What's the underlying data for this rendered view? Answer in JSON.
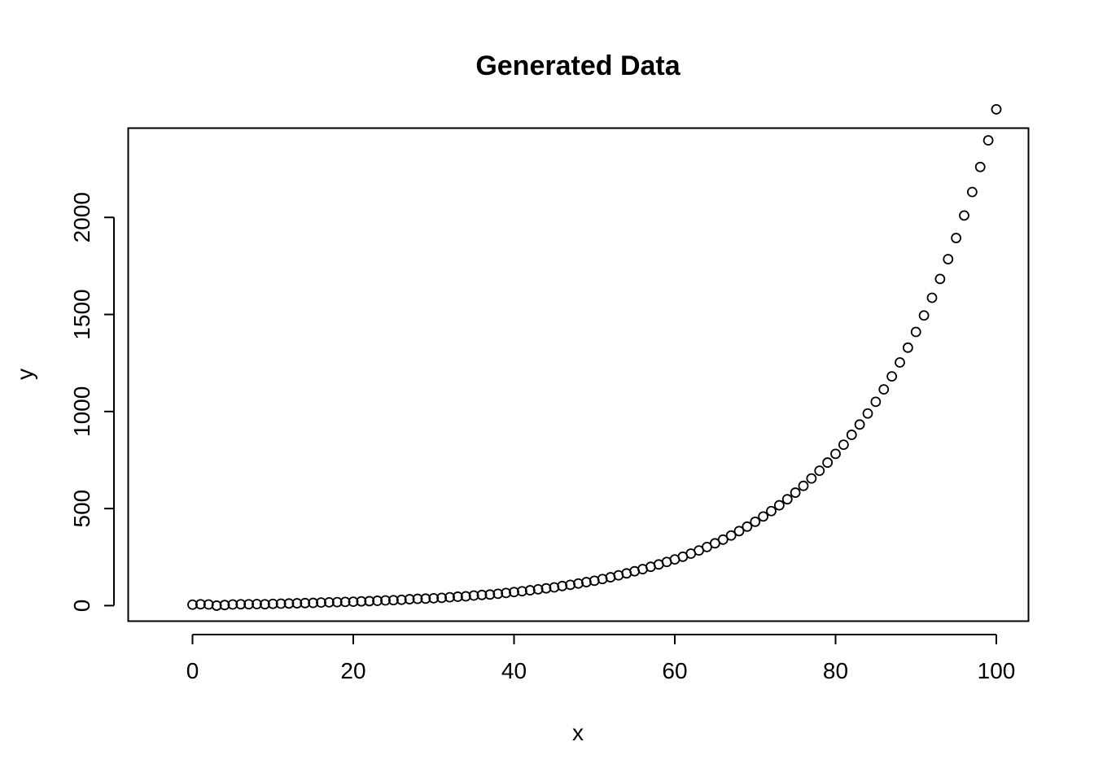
{
  "chart_data": {
    "type": "scatter",
    "title": "Generated Data",
    "xlabel": "x",
    "ylabel": "y",
    "xlim": [
      -8,
      104
    ],
    "ylim": [
      -80,
      2460
    ],
    "x_ticks": [
      0,
      20,
      40,
      60,
      80,
      100
    ],
    "y_ticks": [
      0,
      500,
      1000,
      1500,
      2000
    ],
    "grid": false,
    "legend": "none",
    "marker": "open-circle",
    "colors": {
      "marker": "#000000",
      "axis": "#000000",
      "background": "#ffffff"
    },
    "x": [
      0,
      1,
      2,
      3,
      4,
      5,
      6,
      7,
      8,
      9,
      10,
      11,
      12,
      13,
      14,
      15,
      16,
      17,
      18,
      19,
      20,
      21,
      22,
      23,
      24,
      25,
      26,
      27,
      28,
      29,
      30,
      31,
      32,
      33,
      34,
      35,
      36,
      37,
      38,
      39,
      40,
      41,
      42,
      43,
      44,
      45,
      46,
      47,
      48,
      49,
      50,
      51,
      52,
      53,
      54,
      55,
      56,
      57,
      58,
      59,
      60,
      61,
      62,
      63,
      64,
      65,
      66,
      67,
      68,
      69,
      70,
      71,
      72,
      73,
      74,
      75,
      76,
      77,
      78,
      79,
      80,
      81,
      82,
      83,
      84,
      85,
      86,
      87,
      88,
      89,
      90,
      91,
      92,
      93,
      94,
      95,
      96,
      97,
      98,
      99,
      100
    ],
    "y": [
      5,
      7,
      6,
      0,
      3,
      6,
      7,
      7,
      8,
      7,
      9,
      10,
      11,
      12,
      13,
      14,
      16,
      17,
      18,
      19,
      20,
      22,
      23,
      25,
      27,
      28,
      30,
      33,
      35,
      36,
      38,
      40,
      43,
      46,
      48,
      52,
      55,
      57,
      61,
      65,
      70,
      74,
      79,
      84,
      89,
      94,
      101,
      107,
      114,
      121,
      128,
      137,
      146,
      156,
      166,
      177,
      188,
      200,
      212,
      225,
      238,
      252,
      268,
      284,
      302,
      321,
      340,
      361,
      384,
      407,
      432,
      459,
      487,
      517,
      548,
      582,
      617,
      655,
      695,
      737,
      782,
      829,
      880,
      933,
      990,
      1050,
      1114,
      1181,
      1253,
      1329,
      1410,
      1495,
      1586,
      1683,
      1785,
      1894,
      2010,
      2131,
      2260,
      2397,
      2557
    ]
  }
}
